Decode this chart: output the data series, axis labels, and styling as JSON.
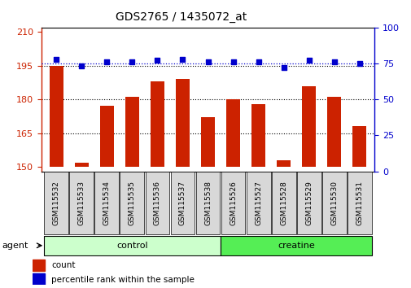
{
  "title": "GDS2765 / 1435072_at",
  "categories": [
    "GSM115532",
    "GSM115533",
    "GSM115534",
    "GSM115535",
    "GSM115536",
    "GSM115537",
    "GSM115538",
    "GSM115526",
    "GSM115527",
    "GSM115528",
    "GSM115529",
    "GSM115530",
    "GSM115531"
  ],
  "bar_values": [
    195,
    152,
    177,
    181,
    188,
    189,
    172,
    180,
    178,
    153,
    186,
    181,
    168
  ],
  "dot_values": [
    78,
    73,
    76,
    76,
    77,
    78,
    76,
    76,
    76,
    72,
    77,
    76,
    75
  ],
  "bar_color": "#cc2200",
  "dot_color": "#0000cc",
  "ylim_left": [
    148,
    212
  ],
  "ylim_right": [
    0,
    100
  ],
  "yticks_left": [
    150,
    165,
    180,
    195,
    210
  ],
  "yticks_right": [
    0,
    25,
    50,
    75,
    100
  ],
  "bg_color": "#ffffff",
  "control_samples": 7,
  "creatine_samples": 6,
  "control_color": "#ccffcc",
  "creatine_color": "#55ee55",
  "agent_label": "agent",
  "control_label": "control",
  "creatine_label": "creatine",
  "legend_count": "count",
  "legend_pct": "percentile rank within the sample",
  "left_tick_color": "#cc2200",
  "right_tick_color": "#0000cc",
  "sample_box_color": "#d8d8d8",
  "bar_bottom": 150
}
